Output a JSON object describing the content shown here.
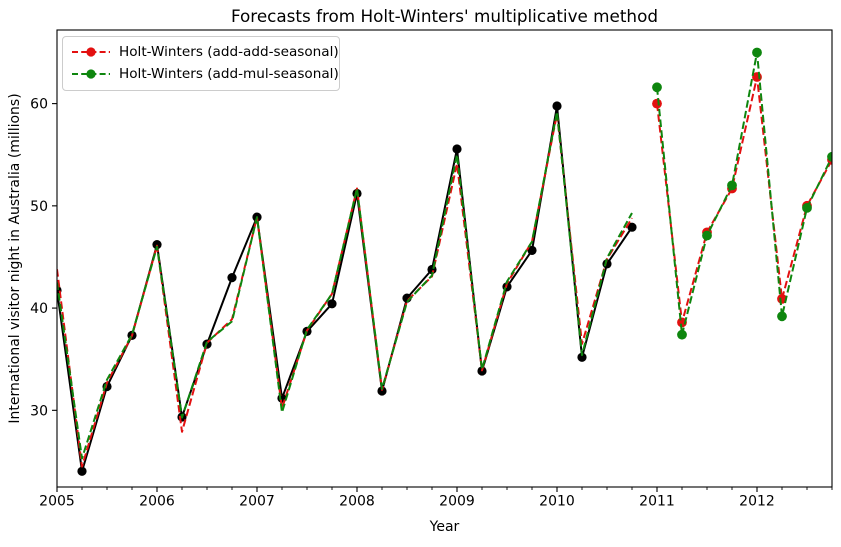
{
  "figure": {
    "title": "Forecasts from Holt-Winters' multiplicative method",
    "xlabel": "Year",
    "ylabel": "International visitor night in Australia (millions)"
  },
  "legend": {
    "entries": [
      {
        "label": "Holt-Winters (add-add-seasonal)",
        "color": "#e31010",
        "linestyle": "dashed",
        "marker": "o"
      },
      {
        "label": "Holt-Winters (add-mul-seasonal)",
        "color": "#0e860e",
        "linestyle": "dashed",
        "marker": "o"
      }
    ]
  },
  "chart_data": {
    "type": "line",
    "title": "Forecasts from Holt-Winters' multiplicative method",
    "xlabel": "Year",
    "ylabel": "International visitor night in Australia (millions)",
    "xlim": [
      2005.0,
      2012.75
    ],
    "ylim": [
      22.5,
      67.2
    ],
    "x_major_ticks": [
      2005,
      2006,
      2007,
      2008,
      2009,
      2010,
      2011,
      2012
    ],
    "x_minor_tick_interval": 0.25,
    "y_ticks": [
      30,
      40,
      50,
      60
    ],
    "grid": false,
    "legend_position": "upper-left",
    "series": [
      {
        "name": "observed",
        "color": "#000000",
        "linestyle": "solid",
        "marker": "o",
        "marker_radius": 4.6,
        "x": [
          2005.0,
          2005.25,
          2005.5,
          2005.75,
          2006.0,
          2006.25,
          2006.5,
          2006.75,
          2007.0,
          2007.25,
          2007.5,
          2007.75,
          2008.0,
          2008.25,
          2008.5,
          2008.75,
          2009.0,
          2009.25,
          2009.5,
          2009.75,
          2010.0,
          2010.25,
          2010.5,
          2010.75
        ],
        "values": [
          41.73,
          24.04,
          32.33,
          37.33,
          46.21,
          29.35,
          36.48,
          42.98,
          48.9,
          31.18,
          37.72,
          40.42,
          51.21,
          31.89,
          40.98,
          43.77,
          55.56,
          33.85,
          42.08,
          45.64,
          59.77,
          35.19,
          44.32,
          47.91
        ]
      },
      {
        "name": "fitted-add-add-seasonal",
        "color": "#e31010",
        "linestyle": "dashed",
        "marker": null,
        "x": [
          2005.0,
          2005.25,
          2005.5,
          2005.75,
          2006.0,
          2006.25,
          2006.5,
          2006.75,
          2007.0,
          2007.25,
          2007.5,
          2007.75,
          2008.0,
          2008.25,
          2008.5,
          2008.75,
          2009.0,
          2009.25,
          2009.5,
          2009.75,
          2010.0,
          2010.25,
          2010.5,
          2010.75
        ],
        "values": [
          43.8,
          24.5,
          32.7,
          37.3,
          46.1,
          27.9,
          36.6,
          38.9,
          48.9,
          30.2,
          37.8,
          41.4,
          51.7,
          32.0,
          40.7,
          43.1,
          54.1,
          33.9,
          42.4,
          46.5,
          59.0,
          36.5,
          44.8,
          48.8
        ]
      },
      {
        "name": "fitted-add-mul-seasonal",
        "color": "#0e860e",
        "linestyle": "dashed",
        "marker": null,
        "x": [
          2005.0,
          2005.25,
          2005.5,
          2005.75,
          2006.0,
          2006.25,
          2006.5,
          2006.75,
          2007.0,
          2007.25,
          2007.5,
          2007.75,
          2008.0,
          2008.25,
          2008.5,
          2008.75,
          2009.0,
          2009.25,
          2009.5,
          2009.75,
          2010.0,
          2010.25,
          2010.5,
          2010.75
        ],
        "values": [
          42.5,
          25.3,
          33.0,
          37.4,
          46.0,
          29.3,
          36.7,
          38.7,
          48.9,
          29.8,
          37.9,
          41.4,
          51.7,
          32.1,
          40.6,
          43.2,
          55.0,
          34.0,
          42.6,
          46.5,
          59.2,
          35.4,
          44.9,
          49.3
        ]
      },
      {
        "name": "Holt-Winters (add-add-seasonal)",
        "color": "#e31010",
        "linestyle": "dashed",
        "marker": "o",
        "marker_radius": 4.9,
        "x": [
          2011.0,
          2011.25,
          2011.5,
          2011.75,
          2012.0,
          2012.25,
          2012.5,
          2012.75
        ],
        "values": [
          60.0,
          38.6,
          47.4,
          51.7,
          62.6,
          40.9,
          50.0,
          54.5
        ]
      },
      {
        "name": "Holt-Winters (add-mul-seasonal)",
        "color": "#0e860e",
        "linestyle": "dashed",
        "marker": "o",
        "marker_radius": 4.9,
        "x": [
          2011.0,
          2011.25,
          2011.5,
          2011.75,
          2012.0,
          2012.25,
          2012.5,
          2012.75
        ],
        "values": [
          61.6,
          37.4,
          47.1,
          52.0,
          65.0,
          39.2,
          49.8,
          54.8
        ]
      }
    ]
  }
}
